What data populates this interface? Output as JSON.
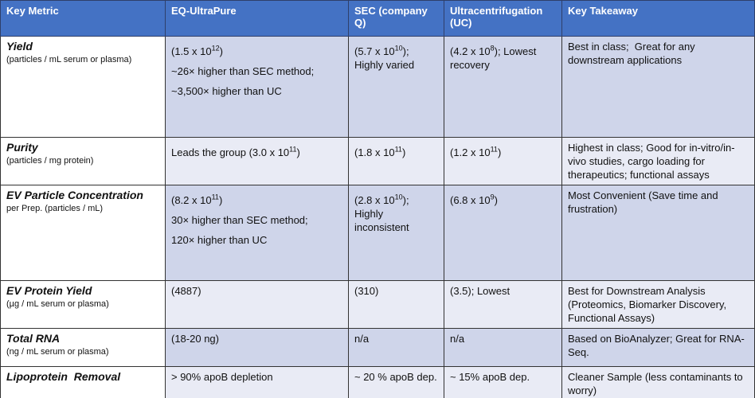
{
  "table": {
    "header": [
      "Key Metric",
      "EQ-UltraPure",
      "SEC (company Q)",
      "Ultracentrifugation (UC)",
      "Key Takeaway"
    ],
    "rows": [
      {
        "metric": {
          "title": "Yield",
          "subtitle": "(particles / mL serum or plasma)"
        },
        "cells": [
          [
            [
              "(1.5 x 10",
              {
                "sup": "12"
              },
              ")"
            ],
            [
              "~26× higher than SEC method;"
            ],
            [
              "~3,500× higher than UC"
            ]
          ],
          [
            [
              "(5.7 x 10",
              {
                "sup": "10"
              },
              "); Highly varied"
            ]
          ],
          [
            [
              "(4.2 x 10",
              {
                "sup": "8"
              },
              "); Lowest recovery"
            ]
          ],
          [
            [
              "Best in class;  Great for any downstream applications"
            ]
          ]
        ]
      },
      {
        "metric": {
          "title": "Purity",
          "subtitle": "(particles / mg protein)"
        },
        "cells": [
          [
            [
              "Leads the group (3.0 x 10",
              {
                "sup": "11"
              },
              ")"
            ]
          ],
          [
            [
              "(1.8 x 10",
              {
                "sup": "11"
              },
              ")"
            ]
          ],
          [
            [
              "(1.2 x 10",
              {
                "sup": "11"
              },
              ")"
            ]
          ],
          [
            [
              "Highest in class; Good for in-vitro/in-vivo studies, cargo loading for therapeutics; functional assays"
            ]
          ]
        ]
      },
      {
        "metric": {
          "title": "EV Particle Concentration",
          "subtitle": "per Prep. (particles / mL)"
        },
        "cells": [
          [
            [
              "(8.2 x 10",
              {
                "sup": "11"
              },
              ")"
            ],
            [
              "30× higher than SEC method;"
            ],
            [
              "120× higher than UC"
            ]
          ],
          [
            [
              "(2.8 x 10",
              {
                "sup": "10"
              },
              "); Highly inconsistent"
            ]
          ],
          [
            [
              "(6.8 x 10",
              {
                "sup": "9"
              },
              ")"
            ]
          ],
          [
            [
              "Most Convenient (Save time and frustration)"
            ]
          ]
        ]
      },
      {
        "metric": {
          "title": "EV Protein Yield",
          "subtitle": "(µg / mL serum or plasma)"
        },
        "cells": [
          [
            [
              "(4887)"
            ]
          ],
          [
            [
              "(310)"
            ]
          ],
          [
            [
              "(3.5); Lowest"
            ]
          ],
          [
            [
              "Best for Downstream Analysis (Proteomics, Biomarker Discovery, Functional Assays)"
            ]
          ]
        ]
      },
      {
        "metric": {
          "title": "Total RNA",
          "subtitle": "(ng / mL serum or plasma)"
        },
        "cells": [
          [
            [
              "(18-20 ng)"
            ]
          ],
          [
            [
              "n/a"
            ]
          ],
          [
            [
              "n/a"
            ]
          ],
          [
            [
              "Based on BioAnalyzer; Great for RNA-Seq."
            ]
          ]
        ]
      },
      {
        "metric": {
          "title": "Lipoprotein  Removal"
        },
        "cells": [
          [
            [
              "> 90% apoB depletion"
            ]
          ],
          [
            [
              "~ 20 % apoB dep."
            ]
          ],
          [
            [
              "~ 15% apoB dep."
            ]
          ],
          [
            [
              "Cleaner Sample (less contaminants to worry)"
            ]
          ]
        ]
      }
    ]
  }
}
